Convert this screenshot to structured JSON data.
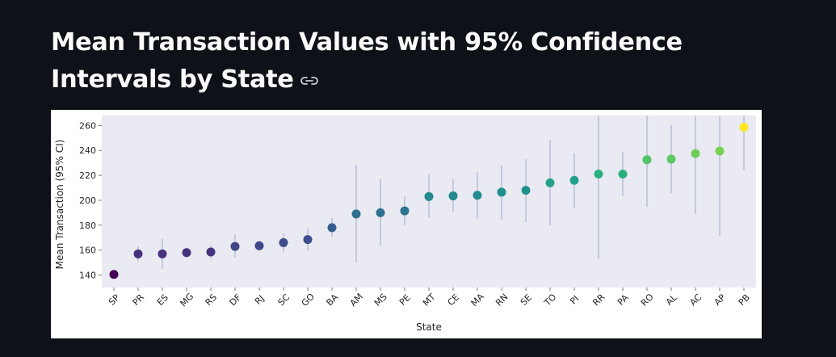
{
  "page": {
    "title": "Mean Transaction Values with 95% Confidence Intervals by State",
    "link_icon": "link-icon"
  },
  "chart_data": {
    "type": "scatter",
    "subtype": "point-with-error-bars",
    "title": "",
    "xlabel": "State",
    "ylabel": "Mean Transaction (95% CI)",
    "ylim": [
      130,
      268
    ],
    "yticks": [
      140,
      160,
      180,
      200,
      220,
      240,
      260
    ],
    "grid": false,
    "background": "#eaeaf2",
    "error_color": "#a9b4d6",
    "categories": [
      "SP",
      "PR",
      "ES",
      "MG",
      "RS",
      "DF",
      "RJ",
      "SC",
      "GO",
      "BA",
      "AM",
      "MS",
      "PE",
      "MT",
      "CE",
      "MA",
      "RN",
      "SE",
      "TO",
      "PI",
      "RR",
      "PA",
      "RO",
      "AL",
      "AC",
      "AP",
      "PB"
    ],
    "values": [
      140.5,
      157,
      157,
      158,
      158.5,
      163,
      163.5,
      166,
      168.5,
      178,
      189,
      190,
      191.5,
      203,
      203.5,
      204,
      206.5,
      208,
      214,
      216,
      221,
      221,
      232.5,
      233,
      237.5,
      239.5,
      258.5
    ],
    "ci_low": [
      138.5,
      151,
      145,
      154,
      153,
      154,
      159.5,
      158,
      159.5,
      170.5,
      150,
      163.5,
      180,
      186,
      190.5,
      185,
      184.5,
      182.5,
      180,
      193.5,
      153,
      203,
      194.5,
      205.5,
      189,
      171.5,
      224.5
    ],
    "ci_high": [
      142.5,
      163,
      169,
      162,
      164,
      172.5,
      167.5,
      173.5,
      177.5,
      186,
      228.5,
      217,
      203,
      221,
      217,
      222.5,
      228,
      233,
      248.5,
      238,
      268,
      239,
      268,
      260.5,
      268,
      268,
      268
    ],
    "colors": [
      "#440154",
      "#46327e",
      "#46327e",
      "#46327e",
      "#46327e",
      "#3f4788",
      "#3f4788",
      "#3e4c8a",
      "#3d4e8a",
      "#365c8d",
      "#2e6f8e",
      "#2c718e",
      "#2b748e",
      "#23898e",
      "#22898e",
      "#228c8d",
      "#21908d",
      "#21918c",
      "#24a08c",
      "#25a18b",
      "#2ab07f",
      "#2ab07f",
      "#53c467",
      "#5ac864",
      "#6ece58",
      "#77d153",
      "#fde725"
    ]
  }
}
